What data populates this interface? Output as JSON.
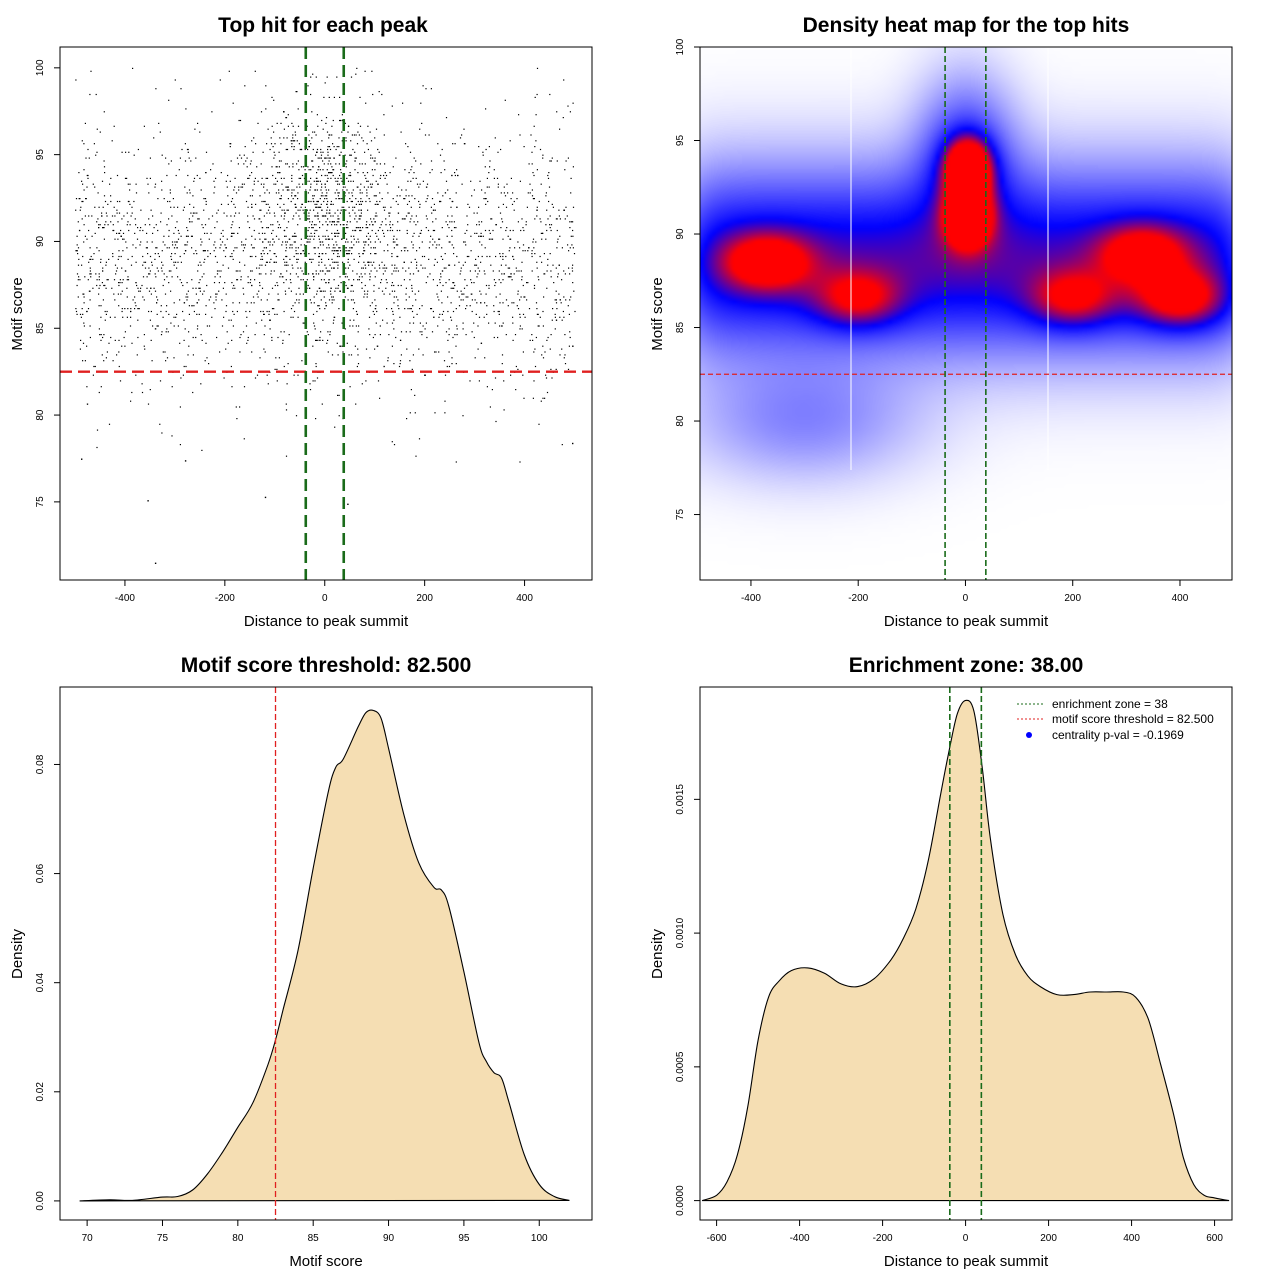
{
  "colors": {
    "threshold": "#e02020",
    "zone": "#1a6b1a",
    "fill": "#f5deb3",
    "density_low": "#ffffff",
    "density_mid": "#0000ff",
    "density_high": "#ff0000",
    "point": "#000000"
  },
  "chart_data": [
    {
      "type": "scatter",
      "title": "Top hit for each peak",
      "xlabel": "Distance to peak summit",
      "ylabel": "Motif score",
      "xlim": [
        -530,
        535
      ],
      "ylim": [
        70.5,
        101.2
      ],
      "xticks": [
        -400,
        -200,
        0,
        200,
        400
      ],
      "yticks": [
        75,
        80,
        85,
        90,
        95,
        100
      ],
      "threshold_y": 82.5,
      "zone_x": [
        -38,
        38
      ],
      "n_points": 3200,
      "x_range": [
        -500,
        500
      ],
      "y_center": 89,
      "y_sd": 3.8,
      "isolated_points": [
        [
          -340,
          71.5
        ],
        [
          -355,
          75.1
        ],
        [
          -120,
          75.3
        ],
        [
          -280,
          77.4
        ],
        [
          -488,
          77.5
        ],
        [
          495,
          78.4
        ],
        [
          45,
          74.9
        ]
      ]
    },
    {
      "type": "heatmap",
      "title": "Density heat map for the top hits",
      "xlabel": "Distance to peak summit",
      "ylabel": "Motif score",
      "xlim": [
        -495,
        497
      ],
      "ylim": [
        71.5,
        100
      ],
      "xticks": [
        -400,
        -200,
        0,
        200,
        400
      ],
      "yticks": [
        75,
        80,
        85,
        90,
        95,
        100
      ],
      "threshold_y": 82.5,
      "zone_x": [
        -38,
        38
      ],
      "density_modes": [
        {
          "x": 5,
          "y": 93.5,
          "weight": 1.0
        },
        {
          "x": 5,
          "y": 91.0,
          "weight": 0.95
        },
        {
          "x": -370,
          "y": 88.5,
          "weight": 0.55
        },
        {
          "x": 330,
          "y": 89.0,
          "weight": 0.5
        },
        {
          "x": 400,
          "y": 86.5,
          "weight": 0.55
        },
        {
          "x": -200,
          "y": 86.5,
          "weight": 0.45
        },
        {
          "x": 200,
          "y": 86.5,
          "weight": 0.45
        }
      ]
    },
    {
      "type": "area",
      "title": "Motif score threshold: 82.500",
      "xlabel": "Motif score",
      "ylabel": "Density",
      "xlim": [
        68.2,
        103.5
      ],
      "ylim": [
        -0.0035,
        0.0942
      ],
      "xticks": [
        70,
        75,
        80,
        85,
        90,
        95,
        100
      ],
      "yticks": [
        0.0,
        0.02,
        0.04,
        0.06,
        0.08
      ],
      "ytick_labels": [
        "0.00",
        "0.02",
        "0.04",
        "0.06",
        "0.08"
      ],
      "threshold_x": 82.5,
      "x": [
        69.5,
        71.5,
        73,
        75,
        76,
        77,
        78,
        79,
        80,
        81,
        82,
        82.5,
        83,
        84,
        85,
        86,
        86.5,
        87,
        88,
        88.5,
        89,
        89.5,
        90,
        91,
        92,
        93,
        93.5,
        94,
        95,
        96,
        96.5,
        97,
        97.5,
        98,
        99,
        100,
        101,
        102
      ],
      "values": [
        0.0,
        0.0002,
        0.0001,
        0.0007,
        0.0008,
        0.002,
        0.005,
        0.009,
        0.0135,
        0.018,
        0.025,
        0.0295,
        0.035,
        0.046,
        0.061,
        0.075,
        0.0795,
        0.081,
        0.087,
        0.0895,
        0.0899,
        0.0885,
        0.083,
        0.071,
        0.062,
        0.0575,
        0.057,
        0.054,
        0.042,
        0.029,
        0.0255,
        0.0235,
        0.0225,
        0.018,
        0.0085,
        0.003,
        0.0008,
        0.0001
      ]
    },
    {
      "type": "area",
      "title": "Enrichment zone: 38.00",
      "xlabel": "Distance to peak summit",
      "ylabel": "Density",
      "xlim": [
        -640,
        642
      ],
      "ylim": [
        -7.25e-05,
        0.00192
      ],
      "xticks": [
        -600,
        -400,
        -200,
        0,
        200,
        400,
        600
      ],
      "yticks": [
        0.0,
        0.0005,
        0.001,
        0.0015
      ],
      "ytick_labels": [
        "0.0000",
        "0.0005",
        "0.0010",
        "0.0015"
      ],
      "zone_x": [
        -38,
        38
      ],
      "x": [
        -635,
        -600,
        -575,
        -550,
        -525,
        -500,
        -475,
        -450,
        -420,
        -380,
        -340,
        -300,
        -260,
        -220,
        -180,
        -150,
        -120,
        -90,
        -60,
        -40,
        -20,
        0,
        20,
        40,
        60,
        90,
        120,
        150,
        180,
        220,
        260,
        300,
        340,
        380,
        410,
        440,
        470,
        500,
        525,
        550,
        575,
        600,
        635
      ],
      "values": [
        0.0,
        2e-05,
        7e-05,
        0.00017,
        0.00035,
        0.0006,
        0.00076,
        0.00082,
        0.00086,
        0.00087,
        0.00085,
        0.00081,
        0.0008,
        0.00083,
        0.0009,
        0.00098,
        0.00109,
        0.00127,
        0.00152,
        0.00168,
        0.00182,
        0.00187,
        0.00183,
        0.00162,
        0.00135,
        0.00107,
        0.00092,
        0.00084,
        0.0008,
        0.00077,
        0.00077,
        0.00078,
        0.00078,
        0.00078,
        0.00076,
        0.00068,
        0.00051,
        0.00033,
        0.00016,
        6e-05,
        2e-05,
        1e-05,
        0.0
      ],
      "legend": [
        {
          "label": "enrichment zone = 38",
          "style": "dotted",
          "color": "#1a6b1a"
        },
        {
          "label": "motif score threshold = 82.500",
          "style": "dotted",
          "color": "#e02020"
        },
        {
          "label": "centrality p-val = -0.1969",
          "style": "point",
          "color": "#0000ff"
        }
      ]
    }
  ]
}
